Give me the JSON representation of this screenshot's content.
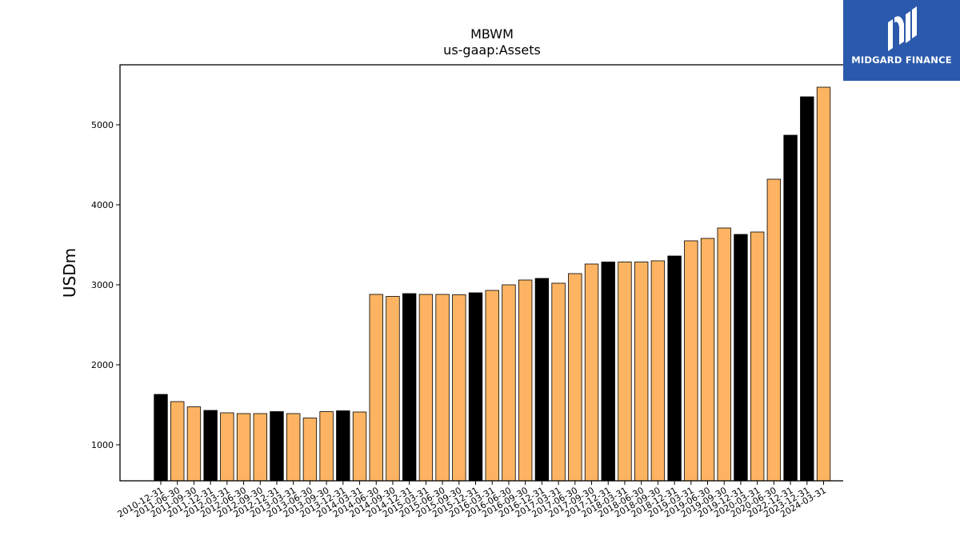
{
  "logo": {
    "text": "MIDGARD FINANCE"
  },
  "chart_data": {
    "type": "bar",
    "title": "MBWM",
    "subtitle": "us-gaap:Assets",
    "xlabel": "",
    "ylabel": "USDm",
    "ylim": [
      550,
      5750
    ],
    "yticks": [
      1000,
      2000,
      3000,
      4000,
      5000
    ],
    "grid": false,
    "colors": {
      "annual": "#000000",
      "quarterly": "#fdb462",
      "edge": "#000000"
    },
    "categories": [
      "2010-12-31",
      "2011-06-30",
      "2011-09-30",
      "2011-12-31",
      "2012-03-31",
      "2012-06-30",
      "2012-09-30",
      "2012-12-31",
      "2013-03-31",
      "2013-06-30",
      "2013-09-30",
      "2013-12-31",
      "2014-03-31",
      "2014-06-30",
      "2014-09-30",
      "2014-12-31",
      "2015-03-31",
      "2015-06-30",
      "2015-09-30",
      "2015-12-31",
      "2016-03-31",
      "2016-06-30",
      "2016-09-30",
      "2016-12-31",
      "2017-03-31",
      "2017-06-30",
      "2017-09-30",
      "2017-12-31",
      "2018-03-31",
      "2018-06-30",
      "2018-09-30",
      "2018-12-31",
      "2019-03-31",
      "2019-06-30",
      "2019-09-30",
      "2019-12-31",
      "2020-03-31",
      "2020-06-30",
      "2022-12-31",
      "2023-12-31",
      "2024-03-31"
    ],
    "values": [
      1630,
      1540,
      1475,
      1430,
      1400,
      1390,
      1390,
      1415,
      1390,
      1335,
      1415,
      1425,
      1410,
      2880,
      2855,
      2890,
      2880,
      2880,
      2875,
      2900,
      2930,
      3000,
      3060,
      3080,
      3020,
      3140,
      3260,
      3285,
      3285,
      3285,
      3300,
      3360,
      3550,
      3580,
      3710,
      3630,
      3660,
      4320,
      4870,
      5350,
      5470
    ],
    "annual": [
      true,
      false,
      false,
      true,
      false,
      false,
      false,
      true,
      false,
      false,
      false,
      true,
      false,
      false,
      false,
      true,
      false,
      false,
      false,
      true,
      false,
      false,
      false,
      true,
      false,
      false,
      false,
      true,
      false,
      false,
      false,
      true,
      false,
      false,
      false,
      true,
      false,
      false,
      true,
      true,
      false
    ]
  }
}
